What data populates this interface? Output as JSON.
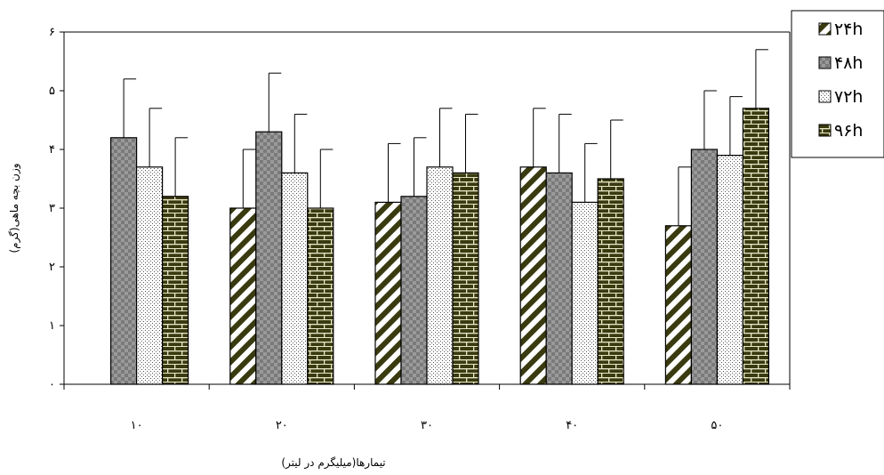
{
  "chart_data": {
    "type": "bar",
    "title": "",
    "xlabel": "تیمارها(میلیگرم در لیتر)",
    "ylabel": "وزن بچه ماهی(گرم)",
    "ylim": [
      0,
      6
    ],
    "yticks": [
      "۰",
      "۱",
      "۲",
      "۳",
      "۴",
      "۵",
      "۶"
    ],
    "categories": [
      "۱۰",
      "۲۰",
      "۳۰",
      "۴۰",
      "۵۰"
    ],
    "grid": false,
    "legend_position": "top-right",
    "series": [
      {
        "name": "۲۴h",
        "pattern": "diagonal-stripes",
        "values": [
          null,
          3.0,
          3.1,
          3.7,
          2.7
        ],
        "errors": [
          null,
          1.0,
          1.0,
          1.0,
          1.0
        ]
      },
      {
        "name": "۴۸h",
        "pattern": "checker-gray",
        "values": [
          4.2,
          4.3,
          3.2,
          3.6,
          4.0
        ],
        "errors": [
          1.0,
          1.0,
          1.0,
          1.0,
          1.0
        ]
      },
      {
        "name": "۷۲h",
        "pattern": "dots",
        "values": [
          3.7,
          3.6,
          3.7,
          3.1,
          3.9
        ],
        "errors": [
          1.0,
          1.0,
          1.0,
          1.0,
          1.0
        ]
      },
      {
        "name": "۹۶h",
        "pattern": "bricks",
        "values": [
          3.2,
          3.0,
          3.6,
          3.5,
          4.7
        ],
        "errors": [
          1.0,
          1.0,
          1.0,
          1.0,
          1.0
        ]
      }
    ],
    "colors": {
      "dark_olive": "#3a3a10",
      "gray": "#8c8c8c",
      "axis": "#000000"
    }
  }
}
